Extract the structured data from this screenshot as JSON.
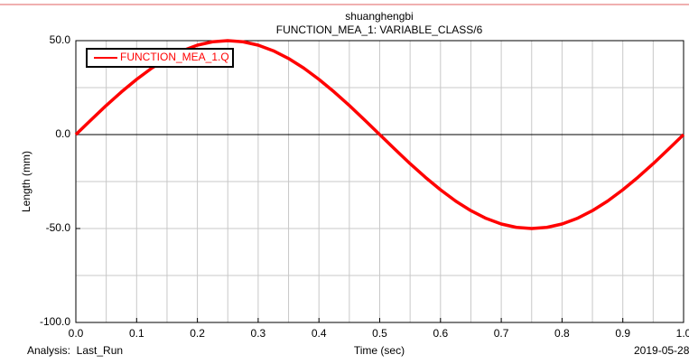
{
  "chart_data": {
    "type": "line",
    "title": "shuanghengbi",
    "subtitle": "FUNCTION_MEA_1: VARIABLE_CLASS/6",
    "x_label": "Time (sec)",
    "y_label": "Length (mm)",
    "footer_left": "Analysis:  Last_Run",
    "footer_right": "2019-05-28",
    "x": [
      0,
      0.025,
      0.05,
      0.075,
      0.1,
      0.125,
      0.15,
      0.175,
      0.2,
      0.225,
      0.25,
      0.275,
      0.3,
      0.325,
      0.35,
      0.375,
      0.4,
      0.425,
      0.45,
      0.475,
      0.5,
      0.525,
      0.55,
      0.575,
      0.6,
      0.625,
      0.65,
      0.675,
      0.7,
      0.725,
      0.75,
      0.775,
      0.8,
      0.825,
      0.85,
      0.875,
      0.9,
      0.925,
      0.95,
      0.975,
      1.0
    ],
    "series": [
      {
        "name": "FUNCTION_MEA_1.Q",
        "color": "#ff0000",
        "values": [
          0,
          7.8,
          15.5,
          22.7,
          29.4,
          35.4,
          40.5,
          44.6,
          47.6,
          49.4,
          50,
          49.4,
          47.6,
          44.6,
          40.5,
          35.4,
          29.4,
          22.7,
          15.5,
          7.8,
          0,
          -7.8,
          -15.5,
          -22.7,
          -29.4,
          -35.4,
          -40.5,
          -44.6,
          -47.6,
          -49.4,
          -50,
          -49.4,
          -47.6,
          -44.6,
          -40.5,
          -35.4,
          -29.4,
          -22.7,
          -15.5,
          -7.8,
          0
        ]
      }
    ],
    "xlim": [
      0,
      1.0
    ],
    "ylim": [
      -100,
      50
    ],
    "xticks": [
      {
        "value": 0,
        "label": "0.0"
      },
      {
        "value": 0.1,
        "label": "0.1"
      },
      {
        "value": 0.2,
        "label": "0.2"
      },
      {
        "value": 0.3,
        "label": "0.3"
      },
      {
        "value": 0.4,
        "label": "0.4"
      },
      {
        "value": 0.5,
        "label": "0.5"
      },
      {
        "value": 0.6,
        "label": "0.6"
      },
      {
        "value": 0.7,
        "label": "0.7"
      },
      {
        "value": 0.8,
        "label": "0.8"
      },
      {
        "value": 0.9,
        "label": "0.9"
      },
      {
        "value": 1.0,
        "label": "1.0"
      }
    ],
    "yticks": [
      {
        "value": -100,
        "label": "-100.0"
      },
      {
        "value": -50,
        "label": "-50.0"
      },
      {
        "value": 0,
        "label": "0.0"
      },
      {
        "value": 50,
        "label": "50.0"
      }
    ],
    "grid": true,
    "legend": "upper left"
  }
}
